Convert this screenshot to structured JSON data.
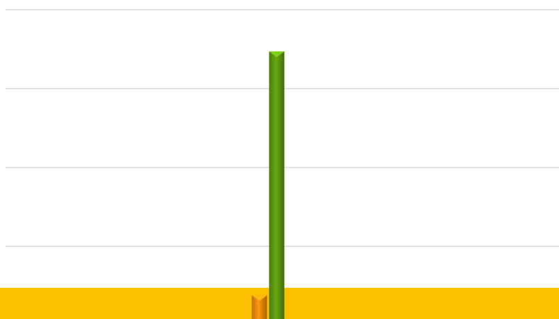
{
  "chart_data": {
    "type": "bar",
    "series": [
      {
        "color": "#f08a0c",
        "values": [
          0.38
        ]
      },
      {
        "color": "#5f9a10",
        "values": [
          3.47
        ]
      }
    ],
    "ylim": [
      0,
      4
    ],
    "yticks": [
      1,
      2,
      3,
      4
    ],
    "grid": true
  }
}
